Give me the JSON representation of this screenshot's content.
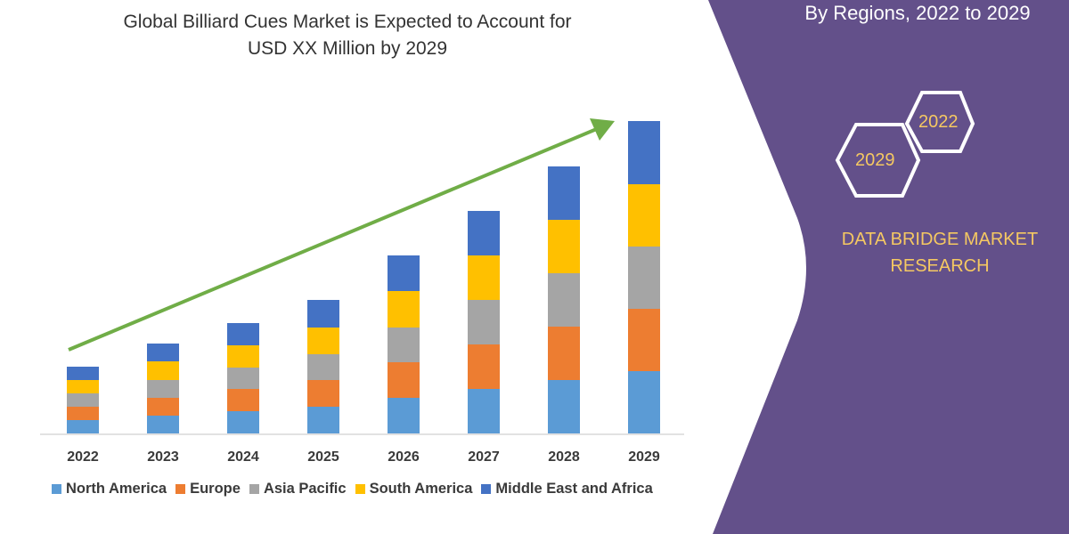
{
  "header": {
    "title_line1": "Global Billiard Cues Market is Expected to Account for",
    "title_line2": "USD XX Million by 2029",
    "right_title": "By Regions, 2022 to 2029"
  },
  "side_panel": {
    "hex_top": "2022",
    "hex_bottom": "2029",
    "brand_line1": "DATA BRIDGE MARKET",
    "brand_line2": "RESEARCH",
    "panel_color": "#63508a",
    "accent_color": "#f5c862"
  },
  "chart_data": {
    "type": "bar",
    "stacked": true,
    "categories": [
      "2022",
      "2023",
      "2024",
      "2025",
      "2026",
      "2027",
      "2028",
      "2029"
    ],
    "series": [
      {
        "name": "North America",
        "color": "#5b9bd5",
        "values": [
          15,
          20,
          25,
          30,
          40,
          50,
          60,
          70
        ]
      },
      {
        "name": "Europe",
        "color": "#ed7d31",
        "values": [
          15,
          20,
          25,
          30,
          40,
          50,
          60,
          70
        ]
      },
      {
        "name": "Asia Pacific",
        "color": "#a5a5a5",
        "values": [
          15,
          20,
          24,
          29,
          39,
          50,
          60,
          70
        ]
      },
      {
        "name": "South America",
        "color": "#ffc000",
        "values": [
          15,
          21,
          25,
          30,
          41,
          50,
          60,
          70
        ]
      },
      {
        "name": "Middle East and Africa",
        "color": "#4472c4",
        "values": [
          15,
          20,
          25,
          31,
          40,
          50,
          60,
          71
        ]
      }
    ],
    "trend_arrow_color": "#70ad47",
    "grid": false,
    "legend_position": "bottom",
    "title": ""
  }
}
